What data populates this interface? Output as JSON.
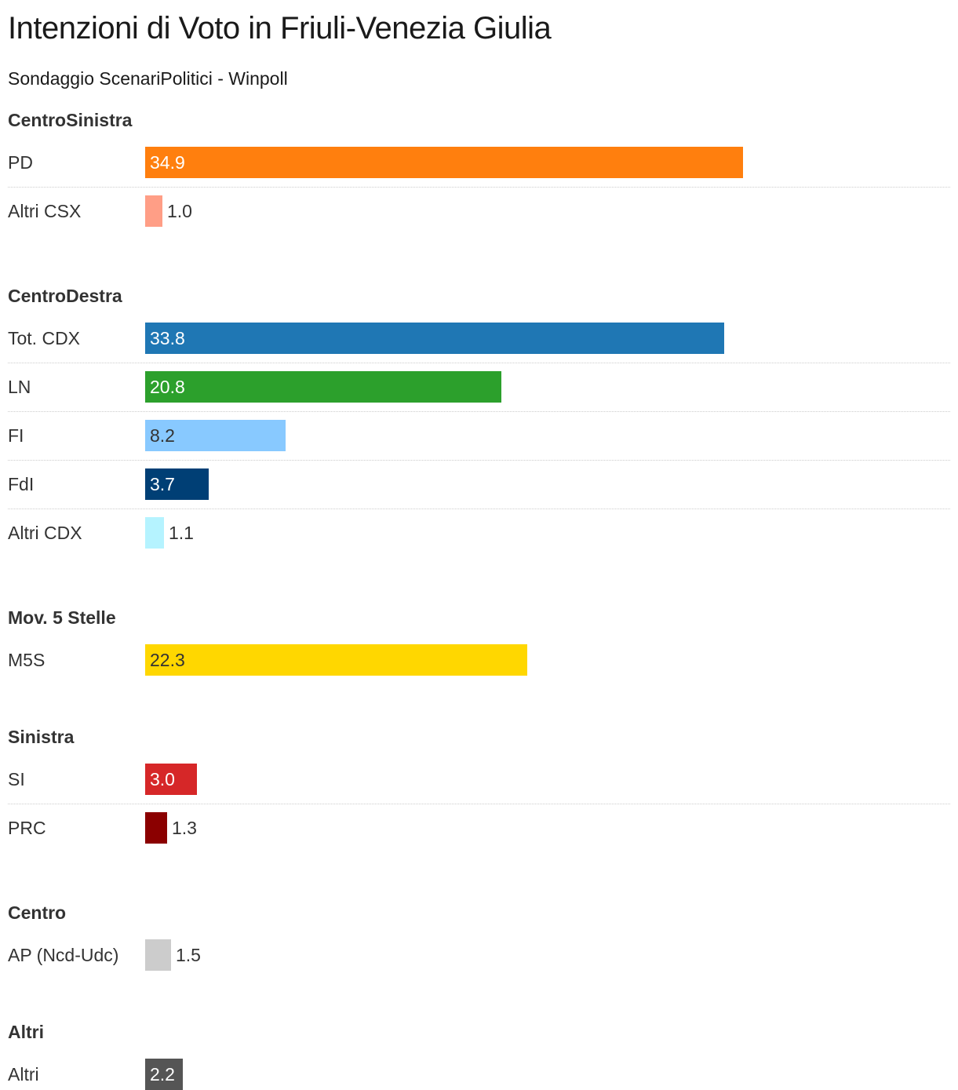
{
  "title": "Intenzioni di Voto in Friuli-Venezia Giulia",
  "subtitle": "Sondaggio ScenariPolitici - Winpoll",
  "chart_data": {
    "type": "bar",
    "orientation": "horizontal",
    "value_labels": "inside-or-beside",
    "groups": [
      {
        "name": "CentroSinistra",
        "rows": [
          {
            "label": "PD",
            "value": 34.9,
            "display": "34.9",
            "color": "#ff7f0e",
            "text_color": "#ffffff"
          },
          {
            "label": "Altri CSX",
            "value": 1.0,
            "display": "1.0",
            "color": "#ff9e86",
            "text_color": "#333333"
          }
        ]
      },
      {
        "name": "CentroDestra",
        "rows": [
          {
            "label": "Tot. CDX",
            "value": 33.8,
            "display": "33.8",
            "color": "#1f77b4",
            "text_color": "#ffffff"
          },
          {
            "label": "LN",
            "value": 20.8,
            "display": "20.8",
            "color": "#2ca02c",
            "text_color": "#ffffff"
          },
          {
            "label": "FI",
            "value": 8.2,
            "display": "8.2",
            "color": "#88c9ff",
            "text_color": "#333333"
          },
          {
            "label": "FdI",
            "value": 3.7,
            "display": "3.7",
            "color": "#003f75",
            "text_color": "#ffffff"
          },
          {
            "label": "Altri CDX",
            "value": 1.1,
            "display": "1.1",
            "color": "#b5f3ff",
            "text_color": "#333333"
          }
        ]
      },
      {
        "name": "Mov. 5 Stelle",
        "rows": [
          {
            "label": "M5S",
            "value": 22.3,
            "display": "22.3",
            "color": "#ffd700",
            "text_color": "#333333"
          }
        ]
      },
      {
        "name": "Sinistra",
        "rows": [
          {
            "label": "SI",
            "value": 3.0,
            "display": "3.0",
            "color": "#d62728",
            "text_color": "#ffffff"
          },
          {
            "label": "PRC",
            "value": 1.3,
            "display": "1.3",
            "color": "#8b0000",
            "text_color": "#333333"
          }
        ]
      },
      {
        "name": "Centro",
        "rows": [
          {
            "label": "AP (Ncd-Udc)",
            "value": 1.5,
            "display": "1.5",
            "color": "#cccccc",
            "text_color": "#333333"
          }
        ]
      },
      {
        "name": "Altri",
        "rows": [
          {
            "label": "Altri",
            "value": 2.2,
            "display": "2.2",
            "color": "#555555",
            "text_color": "#ffffff"
          }
        ]
      }
    ],
    "xlim": [
      0,
      34.9
    ]
  }
}
